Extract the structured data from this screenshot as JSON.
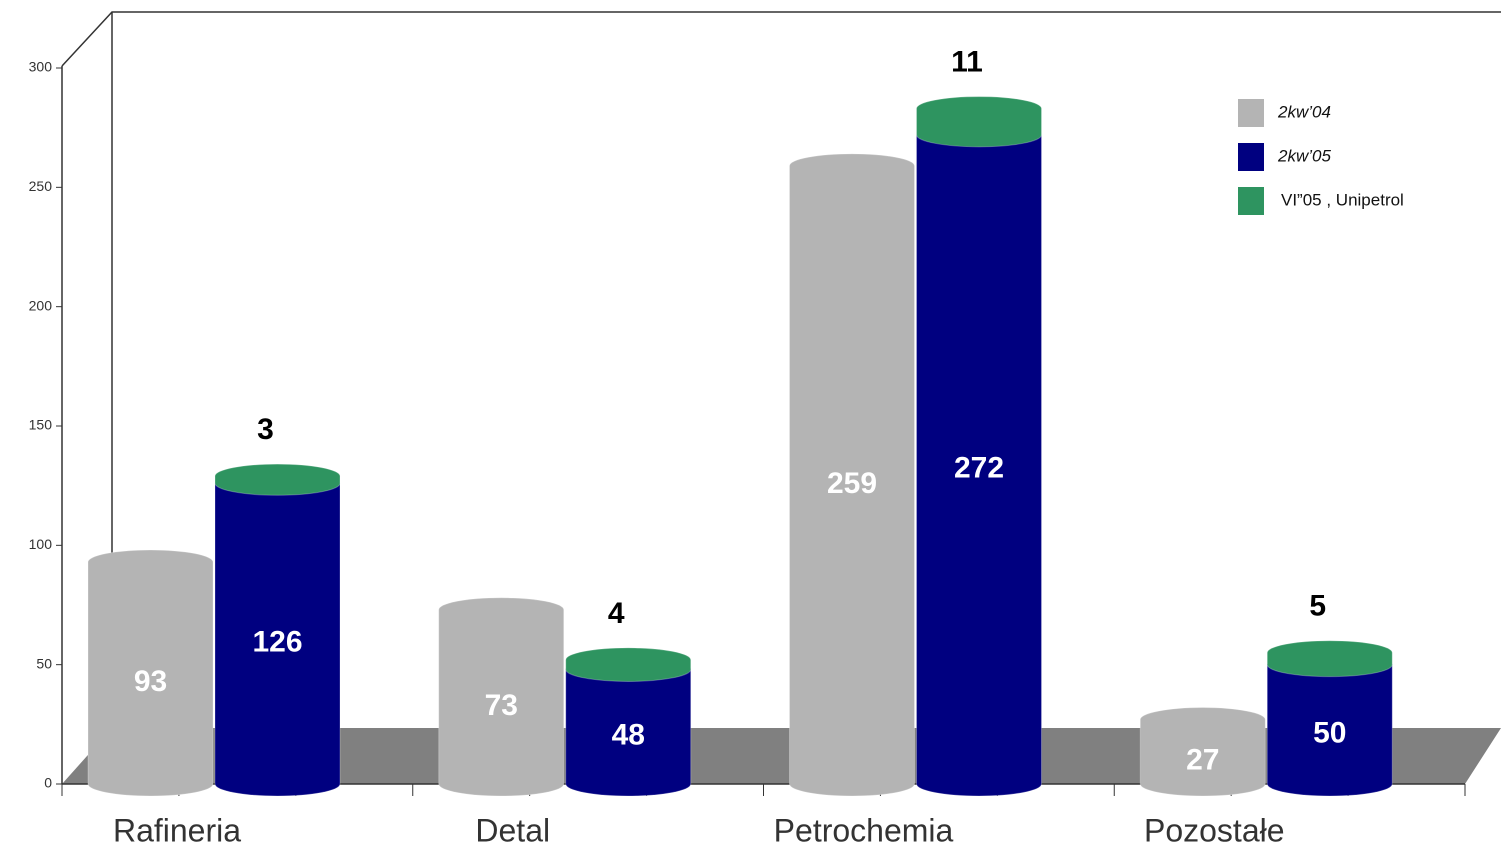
{
  "chart_data": {
    "type": "bar",
    "categories": [
      "Rafineria",
      "Detal",
      "Petrochemia",
      "Pozostałe"
    ],
    "series": [
      {
        "name": "2kw’04",
        "color": "#b4b4b4",
        "values": [
          93,
          73,
          259,
          27
        ]
      },
      {
        "name": "2kw’05",
        "color": "#000080",
        "values": [
          126,
          48,
          272,
          50
        ]
      },
      {
        "name": "VI”05 , Unipetrol",
        "color": "#2e9460",
        "values": [
          3,
          4,
          11,
          5
        ]
      }
    ],
    "ylim": [
      0,
      300
    ],
    "yticks": [
      0,
      50,
      100,
      150,
      200,
      250,
      300
    ],
    "legend": "top-right"
  }
}
